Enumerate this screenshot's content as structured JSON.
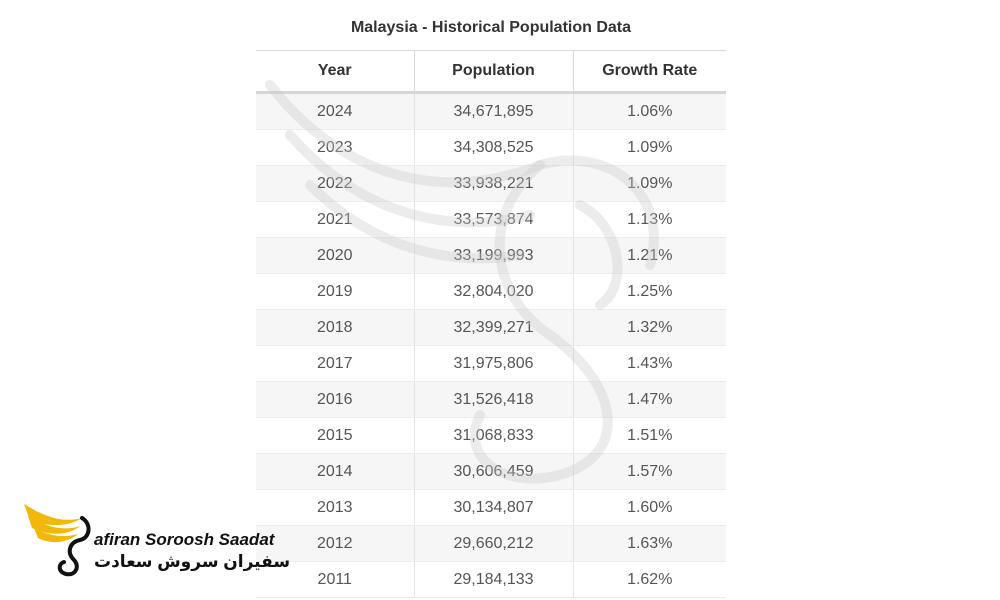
{
  "title": "Malaysia - Historical Population Data",
  "columns": [
    "Year",
    "Population",
    "Growth Rate"
  ],
  "rows": [
    [
      "2024",
      "34,671,895",
      "1.06%"
    ],
    [
      "2023",
      "34,308,525",
      "1.09%"
    ],
    [
      "2022",
      "33,938,221",
      "1.09%"
    ],
    [
      "2021",
      "33,573,874",
      "1.13%"
    ],
    [
      "2020",
      "33,199,993",
      "1.21%"
    ],
    [
      "2019",
      "32,804,020",
      "1.25%"
    ],
    [
      "2018",
      "32,399,271",
      "1.32%"
    ],
    [
      "2017",
      "31,975,806",
      "1.43%"
    ],
    [
      "2016",
      "31,526,418",
      "1.47%"
    ],
    [
      "2015",
      "31,068,833",
      "1.51%"
    ],
    [
      "2014",
      "30,606,459",
      "1.57%"
    ],
    [
      "2013",
      "30,134,807",
      "1.60%"
    ],
    [
      "2012",
      "29,660,212",
      "1.63%"
    ],
    [
      "2011",
      "29,184,133",
      "1.62%"
    ]
  ],
  "logo": {
    "name_en": "afiran Soroosh Saadat",
    "name_fa": "سفیران سروش سعادت",
    "colors": {
      "wing": "#f2b807",
      "text": "#111111"
    }
  },
  "watermark_icon": "swan-wing-icon"
}
